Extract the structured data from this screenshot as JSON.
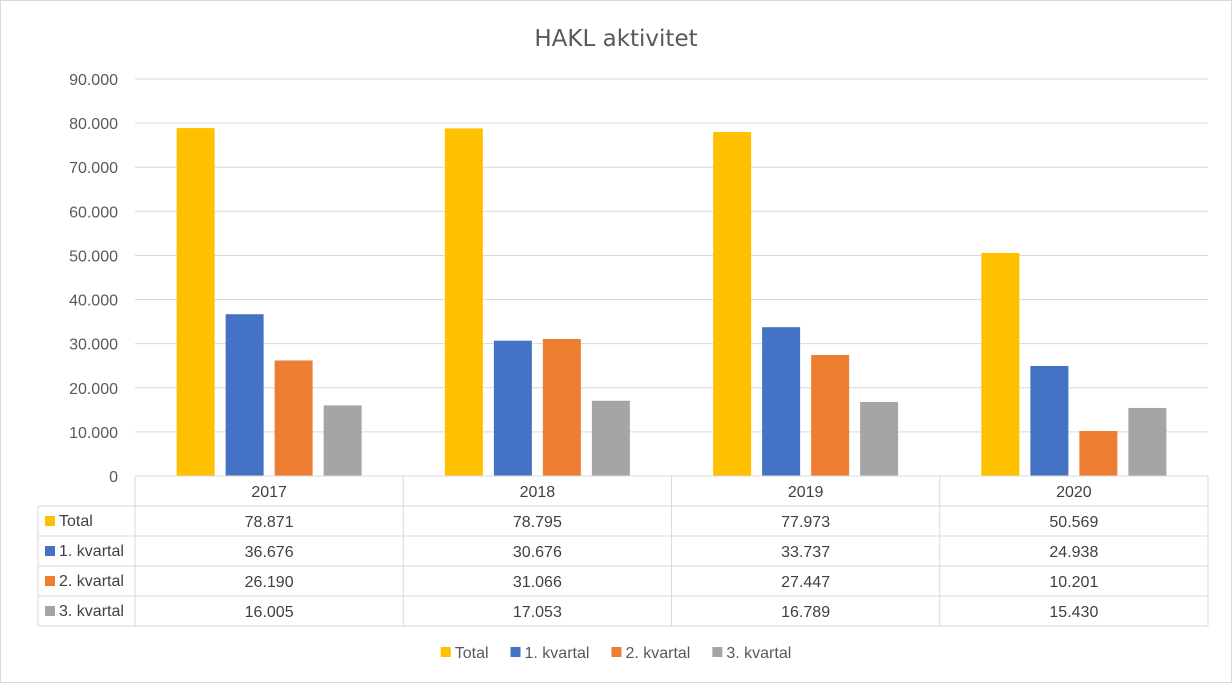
{
  "chart_data": {
    "type": "bar",
    "title": "HAKL aktivitet",
    "categories": [
      "2017",
      "2018",
      "2019",
      "2020"
    ],
    "series": [
      {
        "name": "Total",
        "color": "#ffc000",
        "values": [
          78871,
          78795,
          77973,
          50569
        ]
      },
      {
        "name": "1. kvartal",
        "color": "#4472c4",
        "values": [
          36676,
          30676,
          33737,
          24938
        ]
      },
      {
        "name": "2. kvartal",
        "color": "#ed7d31",
        "values": [
          26190,
          31066,
          27447,
          10201
        ]
      },
      {
        "name": "3. kvartal",
        "color": "#a5a5a5",
        "values": [
          16005,
          17053,
          16789,
          15430
        ]
      }
    ],
    "data_table": [
      [
        "78.871",
        "78.795",
        "77.973",
        "50.569"
      ],
      [
        "36.676",
        "30.676",
        "33.737",
        "24.938"
      ],
      [
        "26.190",
        "31.066",
        "27.447",
        "10.201"
      ],
      [
        "16.005",
        "17.053",
        "16.789",
        "15.430"
      ]
    ],
    "ylim": [
      0,
      90000
    ],
    "yticks": [
      0,
      10000,
      20000,
      30000,
      40000,
      50000,
      60000,
      70000,
      80000,
      90000
    ],
    "ytick_labels": [
      "0",
      "10.000",
      "20.000",
      "30.000",
      "40.000",
      "50.000",
      "60.000",
      "70.000",
      "80.000",
      "90.000"
    ],
    "grid": true,
    "legend_position": "bottom",
    "xlabel": "",
    "ylabel": ""
  }
}
